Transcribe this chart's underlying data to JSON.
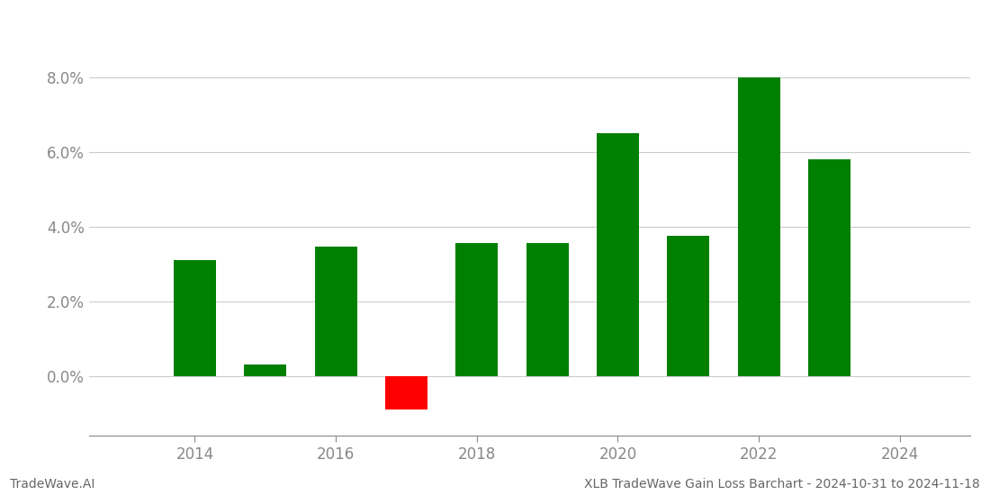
{
  "years": [
    2014,
    2015,
    2016,
    2017,
    2018,
    2019,
    2020,
    2021,
    2022,
    2023
  ],
  "values": [
    0.031,
    0.003,
    0.0345,
    -0.009,
    0.0355,
    0.0355,
    0.065,
    0.0375,
    0.08,
    0.058
  ],
  "bar_colors": [
    "#008000",
    "#008000",
    "#008000",
    "#ff0000",
    "#008000",
    "#008000",
    "#008000",
    "#008000",
    "#008000",
    "#008000"
  ],
  "title": "XLB TradeWave Gain Loss Barchart - 2024-10-31 to 2024-11-18",
  "footer_left": "TradeWave.AI",
  "background_color": "#ffffff",
  "grid_color": "#cccccc",
  "axis_color": "#888888",
  "tick_color": "#888888",
  "ylim": [
    -0.016,
    0.094
  ],
  "bar_width": 0.6,
  "figsize": [
    11.0,
    5.5
  ],
  "dpi": 100
}
